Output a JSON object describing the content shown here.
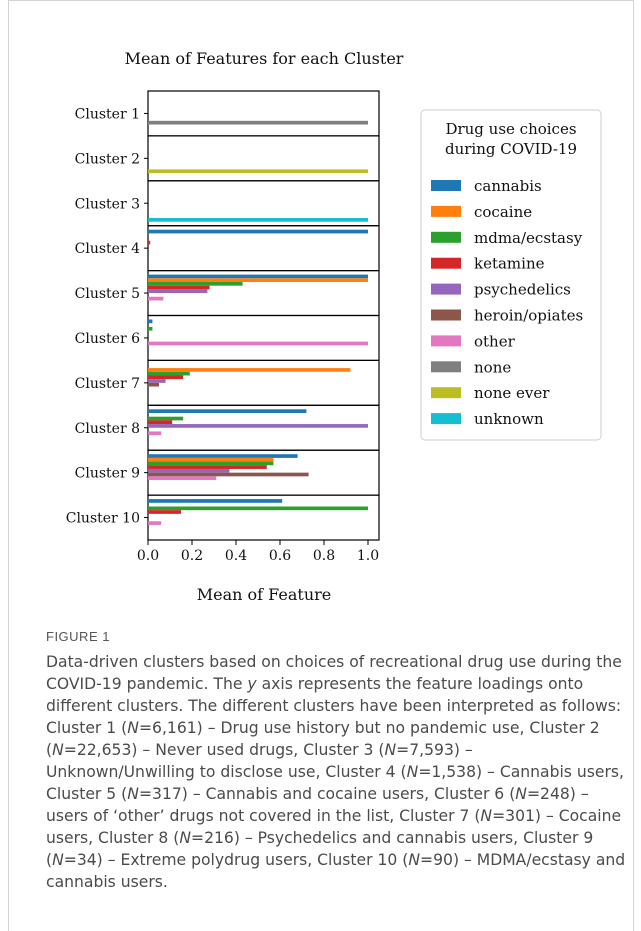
{
  "chart_data": {
    "type": "bar",
    "orientation": "horizontal",
    "title": "Mean of Features for each Cluster",
    "xlabel": "Mean of Feature",
    "ylabel": "",
    "xlim": [
      0,
      1.05
    ],
    "xticks": [
      "0.0",
      "0.2",
      "0.4",
      "0.6",
      "0.8",
      "1.0"
    ],
    "legend": {
      "title_line1": "Drug use choices",
      "title_line2": "during COVID-19",
      "placement": "right"
    },
    "categories": [
      "Cluster 1",
      "Cluster 2",
      "Cluster 3",
      "Cluster 4",
      "Cluster 5",
      "Cluster 6",
      "Cluster 7",
      "Cluster 8",
      "Cluster 9",
      "Cluster 10"
    ],
    "series": [
      {
        "name": "cannabis",
        "color": "#1f77b4",
        "values": [
          0,
          0,
          0,
          1.0,
          1.0,
          0.02,
          0,
          0.72,
          0.68,
          0.61
        ]
      },
      {
        "name": "cocaine",
        "color": "#ff7f0e",
        "values": [
          0,
          0,
          0,
          0,
          1.0,
          0,
          0.92,
          0,
          0.57,
          0
        ]
      },
      {
        "name": "mdma/ecstasy",
        "color": "#2ca02c",
        "values": [
          0,
          0,
          0,
          0,
          0.43,
          0.02,
          0.19,
          0.16,
          0.57,
          1.0
        ]
      },
      {
        "name": "ketamine",
        "color": "#d62728",
        "values": [
          0,
          0,
          0,
          0.01,
          0.28,
          0,
          0.16,
          0.11,
          0.54,
          0.15
        ]
      },
      {
        "name": "psychedelics",
        "color": "#9467bd",
        "values": [
          0,
          0,
          0,
          0,
          0.27,
          0,
          0.08,
          1.0,
          0.37,
          0
        ]
      },
      {
        "name": "heroin/opiates",
        "color": "#8c564b",
        "values": [
          0,
          0,
          0,
          0,
          0,
          0,
          0.05,
          0,
          0.73,
          0
        ]
      },
      {
        "name": "other",
        "color": "#e377c2",
        "values": [
          0,
          0,
          0,
          0,
          0.07,
          1.0,
          0,
          0.06,
          0.31,
          0.06
        ]
      },
      {
        "name": "none",
        "color": "#7f7f7f",
        "values": [
          1.0,
          0,
          0,
          0,
          0,
          0,
          0,
          0,
          0,
          0
        ]
      },
      {
        "name": "none ever",
        "color": "#bcbd22",
        "values": [
          0,
          1.0,
          0,
          0,
          0,
          0,
          0,
          0,
          0,
          0
        ]
      },
      {
        "name": "unknown",
        "color": "#17becf",
        "values": [
          0,
          0,
          1.0,
          0,
          0,
          0,
          0,
          0,
          0,
          0
        ]
      }
    ]
  },
  "figure_label": "FIGURE 1",
  "caption": {
    "p1": "Data-driven clusters based on choices of recreational drug use during the COVID-19 pandemic. The ",
    "y": "y",
    "p2": " axis represents the feature loadings onto different clusters. The different clusters have been interpreted as follows: Cluster 1 (",
    "n": "N",
    "c1": "=6,161) – Drug use history but no pandemic use, Cluster 2 (",
    "c2": "=22,653) – Never used drugs, Cluster 3 (",
    "c3": "=7,593) – Unknown/Unwilling to disclose use, Cluster 4 (",
    "c4": "=1,538) – Cannabis users, Cluster 5 (",
    "c5": "=317) – Cannabis and cocaine users, Cluster 6 (",
    "c6": "=248) – users of ‘other’ drugs not covered in the list, Cluster 7 (",
    "c7": "=301) – Cocaine users, Cluster 8 (",
    "c8": "=216) – Psychedelics and cannabis users, Cluster 9 (",
    "c9": "=34) – Extreme polydrug users, Cluster 10 (",
    "c10": "=90) – MDMA/ecstasy and cannabis users."
  }
}
